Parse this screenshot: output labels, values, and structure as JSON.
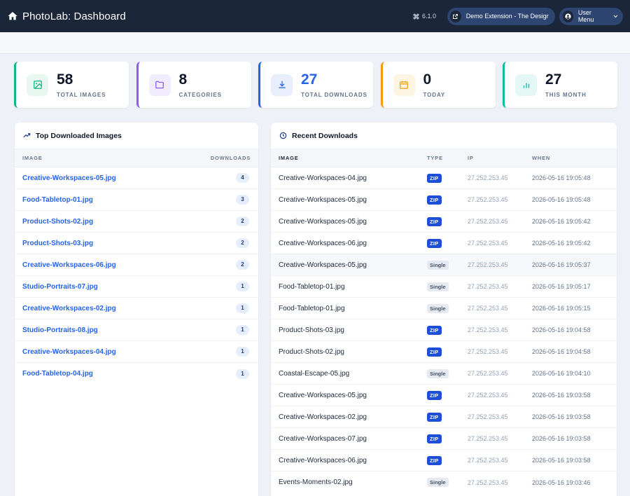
{
  "header": {
    "title": "PhotoLab: Dashboard",
    "version": "6.1.0",
    "extension_label": "Demo Extension - The Design...",
    "user_menu_label": "User Menu"
  },
  "colors": {
    "topbar": "#1b2638",
    "pill": "#2e4471",
    "link": "#2563eb",
    "zip_badge": "#1d4ed8"
  },
  "stats": [
    {
      "value": "58",
      "label": "TOTAL IMAGES",
      "icon": "image-icon",
      "accent": "#10b981",
      "tint": "#e8f8f1"
    },
    {
      "value": "8",
      "label": "CATEGORIES",
      "icon": "folder-icon",
      "accent": "#8b5cf6",
      "tint": "#f1ecfe"
    },
    {
      "value": "27",
      "label": "TOTAL DOWNLOADS",
      "icon": "download-icon",
      "accent": "#2563eb",
      "tint": "#e8eefc",
      "value_color": "#2563eb"
    },
    {
      "value": "0",
      "label": "TODAY",
      "icon": "calendar-icon",
      "accent": "#f59e0b",
      "tint": "#fdf4e2"
    },
    {
      "value": "27",
      "label": "THIS MONTH",
      "icon": "bar-chart-icon",
      "accent": "#14b8a6",
      "tint": "#e5f7f5"
    }
  ],
  "top_downloaded": {
    "title": "Top Downloaded Images",
    "columns": [
      "IMAGE",
      "DOWNLOADS"
    ],
    "rows": [
      {
        "image": "Creative-Workspaces-05.jpg",
        "downloads": "4"
      },
      {
        "image": "Food-Tabletop-01.jpg",
        "downloads": "3"
      },
      {
        "image": "Product-Shots-02.jpg",
        "downloads": "2"
      },
      {
        "image": "Product-Shots-03.jpg",
        "downloads": "2"
      },
      {
        "image": "Creative-Workspaces-06.jpg",
        "downloads": "2"
      },
      {
        "image": "Studio-Portraits-07.jpg",
        "downloads": "1"
      },
      {
        "image": "Creative-Workspaces-02.jpg",
        "downloads": "1"
      },
      {
        "image": "Studio-Portraits-08.jpg",
        "downloads": "1"
      },
      {
        "image": "Creative-Workspaces-04.jpg",
        "downloads": "1"
      },
      {
        "image": "Food-Tabletop-04.jpg",
        "downloads": "1"
      }
    ]
  },
  "recent_downloads": {
    "title": "Recent Downloads",
    "columns": [
      "IMAGE",
      "TYPE",
      "IP",
      "WHEN"
    ],
    "rows": [
      {
        "image": "Creative-Workspaces-04.jpg",
        "type": "ZIP",
        "ip": "27.252.253.45",
        "when": "2026-05-16 19:05:48"
      },
      {
        "image": "Creative-Workspaces-05.jpg",
        "type": "ZIP",
        "ip": "27.252.253.45",
        "when": "2026-05-16 19:05:48"
      },
      {
        "image": "Creative-Workspaces-05.jpg",
        "type": "ZIP",
        "ip": "27.252.253.45",
        "when": "2026-05-16 19:05:42"
      },
      {
        "image": "Creative-Workspaces-06.jpg",
        "type": "ZIP",
        "ip": "27.252.253.45",
        "when": "2026-05-16 19:05:42"
      },
      {
        "image": "Creative-Workspaces-05.jpg",
        "type": "Single",
        "ip": "27.252.253.45",
        "when": "2026-05-16 19:05:37",
        "highlighted": true
      },
      {
        "image": "Food-Tabletop-01.jpg",
        "type": "Single",
        "ip": "27.252.253.45",
        "when": "2026-05-16 19:05:17"
      },
      {
        "image": "Food-Tabletop-01.jpg",
        "type": "Single",
        "ip": "27.252.253.45",
        "when": "2026-05-16 19:05:15"
      },
      {
        "image": "Product-Shots-03.jpg",
        "type": "ZIP",
        "ip": "27.252.253.45",
        "when": "2026-05-16 19:04:58"
      },
      {
        "image": "Product-Shots-02.jpg",
        "type": "ZIP",
        "ip": "27.252.253.45",
        "when": "2026-05-16 19:04:58"
      },
      {
        "image": "Coastal-Escape-05.jpg",
        "type": "Single",
        "ip": "27.252.253.45",
        "when": "2026-05-16 19:04:10"
      },
      {
        "image": "Creative-Workspaces-05.jpg",
        "type": "ZIP",
        "ip": "27.252.253.45",
        "when": "2026-05-16 19:03:58"
      },
      {
        "image": "Creative-Workspaces-02.jpg",
        "type": "ZIP",
        "ip": "27.252.253.45",
        "when": "2026-05-16 19:03:58"
      },
      {
        "image": "Creative-Workspaces-07.jpg",
        "type": "ZIP",
        "ip": "27.252.253.45",
        "when": "2026-05-16 19:03:58"
      },
      {
        "image": "Creative-Workspaces-06.jpg",
        "type": "ZIP",
        "ip": "27.252.253.45",
        "when": "2026-05-16 19:03:58"
      },
      {
        "image": "Events-Moments-02.jpg",
        "type": "Single",
        "ip": "27.252.253.45",
        "when": "2026-05-16 19:03:46"
      }
    ]
  }
}
